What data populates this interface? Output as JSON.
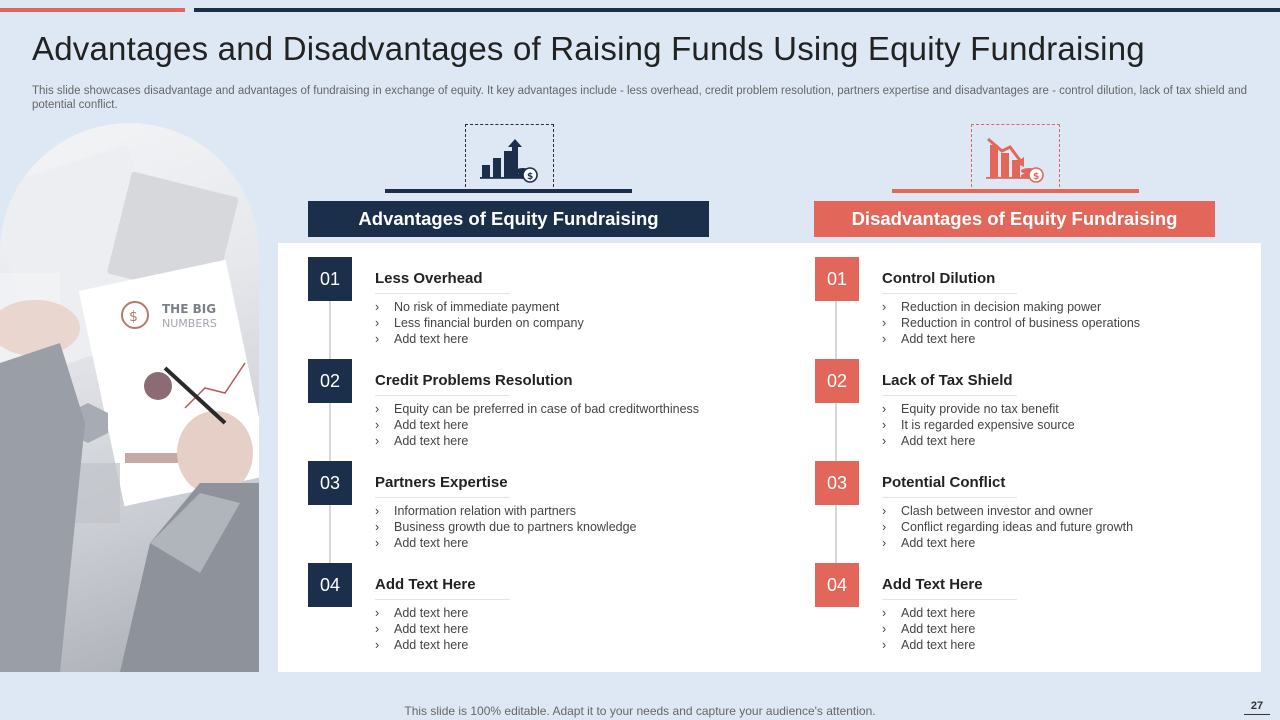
{
  "colors": {
    "navy": "#1b2f4b",
    "accent": "#e2665a",
    "background": "#dde8f4"
  },
  "title": "Advantages and Disadvantages of Raising Funds Using Equity Fundraising",
  "subtitle": "This slide showcases disadvantage and advantages of fundraising in exchange of equity. It key advantages include - less overhead, credit problem resolution, partners expertise and disadvantages are - control dilution, lack of tax shield and potential conflict.",
  "image": {
    "icon": "business-documents-photo",
    "texts": [
      "THE BIG",
      "NUMBERS"
    ]
  },
  "advantages": {
    "icon": "growth-chart-icon",
    "header": "Advantages of Equity Fundraising",
    "items": [
      {
        "num": "01",
        "title": "Less Overhead",
        "bullets": [
          "No risk of immediate payment",
          "Less financial burden on company",
          "Add text here"
        ]
      },
      {
        "num": "02",
        "title": "Credit Problems Resolution",
        "bullets": [
          "Equity can be preferred  in case of bad creditworthiness",
          "Add text here",
          "Add text here"
        ]
      },
      {
        "num": "03",
        "title": "Partners Expertise",
        "bullets": [
          "Information  relation with partners",
          "Business growth  due to partners  knowledge",
          "Add text here"
        ]
      },
      {
        "num": "04",
        "title": "Add  Text Here",
        "bullets": [
          "Add text here",
          "Add text here",
          "Add text here"
        ]
      }
    ]
  },
  "disadvantages": {
    "icon": "declining-chart-icon",
    "header": "Disadvantages of Equity Fundraising",
    "items": [
      {
        "num": "01",
        "title": "Control Dilution",
        "bullets": [
          "Reduction in decision making power",
          "Reduction in control of business operations",
          "Add text here"
        ]
      },
      {
        "num": "02",
        "title": "Lack of Tax Shield",
        "bullets": [
          "Equity provide  no tax benefit",
          "It is regarded  expensive source",
          "Add text here"
        ]
      },
      {
        "num": "03",
        "title": "Potential Conflict",
        "bullets": [
          "Clash  between investor and owner",
          "Conflict regarding  ideas and future growth",
          "Add text here"
        ]
      },
      {
        "num": "04",
        "title": "Add  Text Here",
        "bullets": [
          "Add text here",
          "Add text here",
          "Add text here"
        ]
      }
    ]
  },
  "footer": "This slide is 100% editable. Adapt it to your needs and capture your audience's attention.",
  "page_number": "27"
}
